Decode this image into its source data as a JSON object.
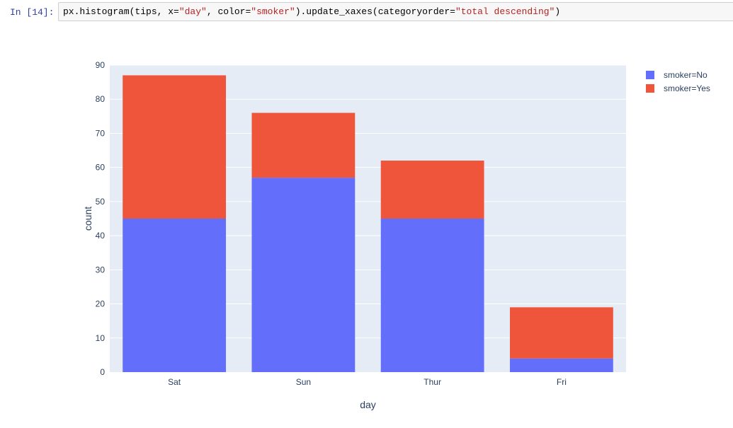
{
  "cell": {
    "prompt": "In [14]:",
    "code_parts": [
      {
        "text": "px.histogram(tips, x=",
        "type": "plain"
      },
      {
        "text": "\"day\"",
        "type": "str"
      },
      {
        "text": ", color=",
        "type": "plain"
      },
      {
        "text": "\"smoker\"",
        "type": "str"
      },
      {
        "text": ").update_xaxes(categoryorder=",
        "type": "plain"
      },
      {
        "text": "\"total descending\"",
        "type": "str"
      },
      {
        "text": ")",
        "type": "plain"
      }
    ]
  },
  "colors": {
    "plot_bg": "#e5ecf6",
    "grid": "#ffffff",
    "tick_text": "#2a3f5f",
    "series_no": "#636efa",
    "series_yes": "#ef553b"
  },
  "chart_data": {
    "type": "bar",
    "stacked": true,
    "categories": [
      "Sat",
      "Sun",
      "Thur",
      "Fri"
    ],
    "series": [
      {
        "name": "smoker=No",
        "values": [
          45,
          57,
          45,
          4
        ]
      },
      {
        "name": "smoker=Yes",
        "values": [
          42,
          19,
          17,
          15
        ]
      }
    ],
    "xlabel": "day",
    "ylabel": "count",
    "ylim": [
      0,
      90
    ],
    "yticks": [
      0,
      10,
      20,
      30,
      40,
      50,
      60,
      70,
      80,
      90
    ],
    "grid": true,
    "legend_position": "top-right"
  }
}
